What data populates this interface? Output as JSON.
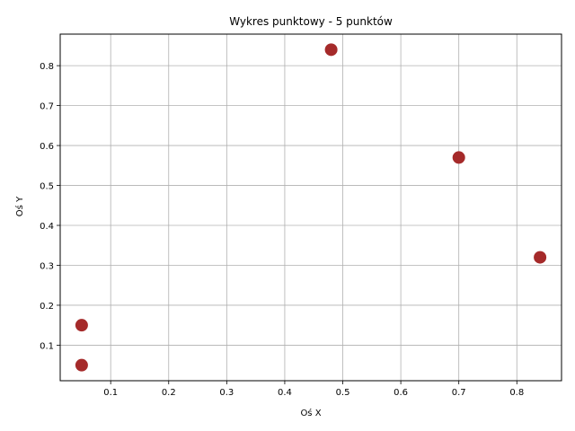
{
  "chart_data": {
    "type": "scatter",
    "title": "Wykres punktowy - 5 punktów",
    "xlabel": "Oś X",
    "ylabel": "Oś Y",
    "xlim": [
      0.013,
      0.877
    ],
    "ylim": [
      0.011,
      0.879
    ],
    "xticks": [
      0.1,
      0.2,
      0.3,
      0.4,
      0.5,
      0.6,
      0.7,
      0.8
    ],
    "yticks": [
      0.1,
      0.2,
      0.3,
      0.4,
      0.5,
      0.6,
      0.7,
      0.8
    ],
    "grid": true,
    "marker_color": "#a52a2a",
    "grid_color": "#b0b0b0",
    "points": [
      {
        "x": 0.05,
        "y": 0.05
      },
      {
        "x": 0.05,
        "y": 0.15
      },
      {
        "x": 0.48,
        "y": 0.84
      },
      {
        "x": 0.7,
        "y": 0.57
      },
      {
        "x": 0.84,
        "y": 0.32
      }
    ]
  }
}
